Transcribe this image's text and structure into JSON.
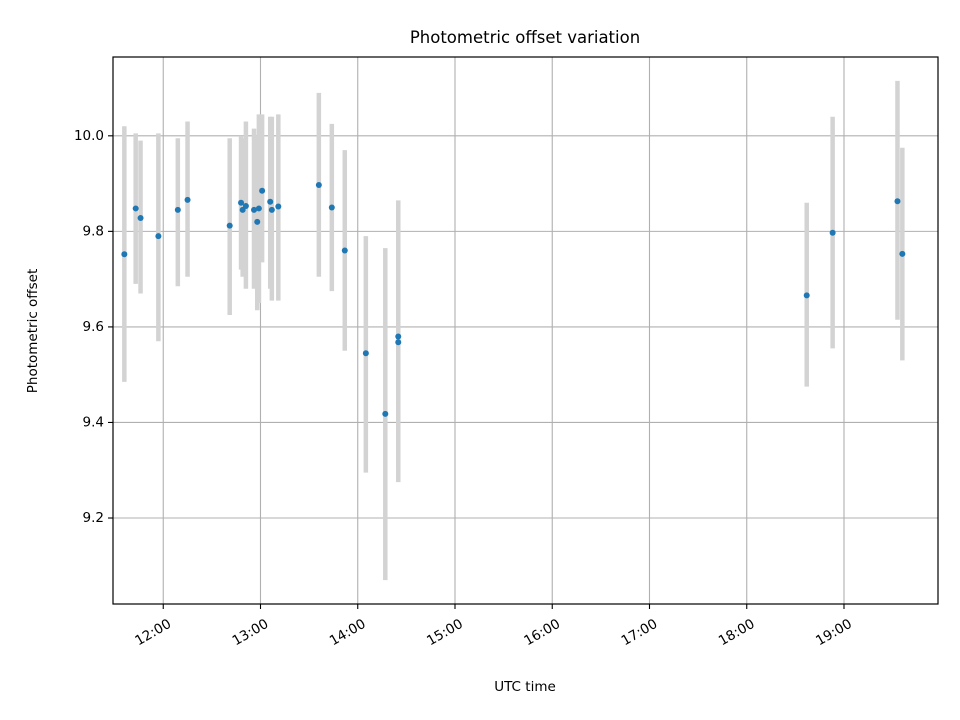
{
  "chart_data": {
    "type": "scatter",
    "title": "Photometric offset variation",
    "xlabel": "UTC time",
    "ylabel": "Photometric offset",
    "x_ticks": [
      "12:00",
      "13:00",
      "14:00",
      "15:00",
      "16:00",
      "17:00",
      "18:00",
      "19:00"
    ],
    "y_ticks": [
      "9.2",
      "9.4",
      "9.6",
      "9.8",
      "10.0"
    ],
    "xlim": [
      "11:29",
      "19:58"
    ],
    "ylim": [
      9.02,
      10.165
    ],
    "grid": true,
    "colors": {
      "point": "#1f77b4",
      "errorbar": "#d3d3d3",
      "grid": "#b0b0b0"
    },
    "series": [
      {
        "points": [
          {
            "x": "11:36",
            "y": 9.752,
            "lo": 9.485,
            "hi": 10.02
          },
          {
            "x": "11:43",
            "y": 9.848,
            "lo": 9.69,
            "hi": 10.005
          },
          {
            "x": "11:46",
            "y": 9.828,
            "lo": 9.67,
            "hi": 9.99
          },
          {
            "x": "11:57",
            "y": 9.79,
            "lo": 9.57,
            "hi": 10.005
          },
          {
            "x": "12:09",
            "y": 9.845,
            "lo": 9.685,
            "hi": 9.995
          },
          {
            "x": "12:15",
            "y": 9.866,
            "lo": 9.705,
            "hi": 10.03
          },
          {
            "x": "12:41",
            "y": 9.812,
            "lo": 9.625,
            "hi": 9.995
          },
          {
            "x": "12:48",
            "y": 9.86,
            "lo": 9.72,
            "hi": 10.0
          },
          {
            "x": "12:49",
            "y": 9.845,
            "lo": 9.705,
            "hi": 9.995
          },
          {
            "x": "12:51",
            "y": 9.853,
            "lo": 9.68,
            "hi": 10.03
          },
          {
            "x": "12:56",
            "y": 9.845,
            "lo": 9.68,
            "hi": 10.015
          },
          {
            "x": "12:58",
            "y": 9.82,
            "lo": 9.635,
            "hi": 10.0
          },
          {
            "x": "12:59",
            "y": 9.848,
            "lo": 9.65,
            "hi": 10.045
          },
          {
            "x": "13:01",
            "y": 9.885,
            "lo": 9.735,
            "hi": 10.045
          },
          {
            "x": "13:06",
            "y": 9.862,
            "lo": 9.68,
            "hi": 10.04
          },
          {
            "x": "13:07",
            "y": 9.845,
            "lo": 9.655,
            "hi": 10.04
          },
          {
            "x": "13:11",
            "y": 9.852,
            "lo": 9.655,
            "hi": 10.045
          },
          {
            "x": "13:36",
            "y": 9.897,
            "lo": 9.705,
            "hi": 10.09
          },
          {
            "x": "13:44",
            "y": 9.85,
            "lo": 9.675,
            "hi": 10.025
          },
          {
            "x": "13:52",
            "y": 9.76,
            "lo": 9.55,
            "hi": 9.97
          },
          {
            "x": "14:05",
            "y": 9.545,
            "lo": 9.295,
            "hi": 9.79
          },
          {
            "x": "14:17",
            "y": 9.418,
            "lo": 9.07,
            "hi": 9.765
          },
          {
            "x": "14:25",
            "y": 9.58,
            "lo": 9.305,
            "hi": 9.865
          },
          {
            "x": "14:25",
            "y": 9.568,
            "lo": 9.275,
            "hi": 9.855
          },
          {
            "x": "18:37",
            "y": 9.666,
            "lo": 9.475,
            "hi": 9.86
          },
          {
            "x": "18:53",
            "y": 9.797,
            "lo": 9.555,
            "hi": 10.04
          },
          {
            "x": "19:33",
            "y": 9.863,
            "lo": 9.615,
            "hi": 10.115
          },
          {
            "x": "19:36",
            "y": 9.753,
            "lo": 9.53,
            "hi": 9.975
          }
        ]
      }
    ]
  }
}
